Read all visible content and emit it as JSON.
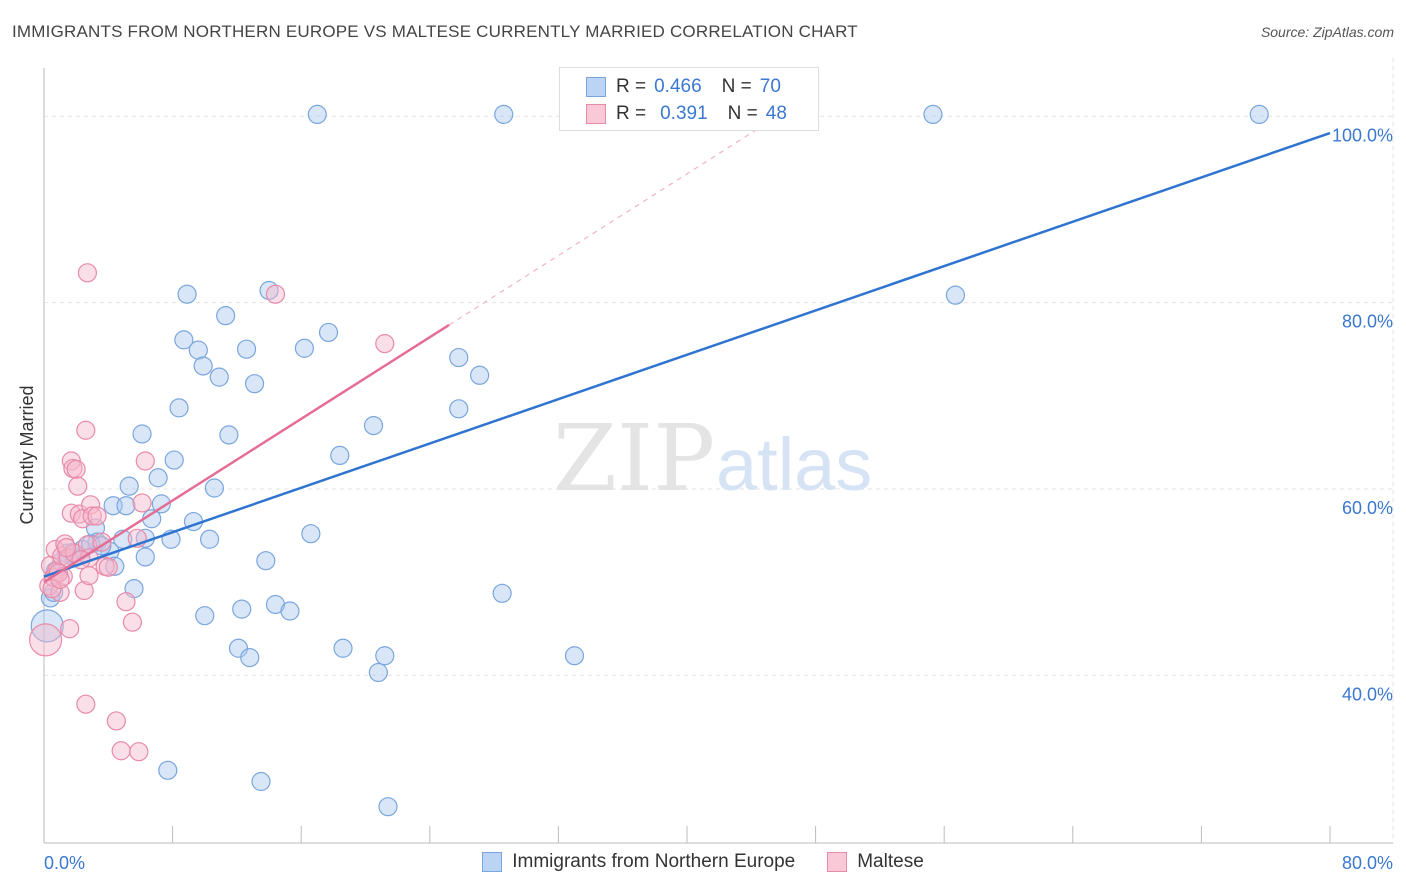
{
  "header": {
    "title": "IMMIGRANTS FROM NORTHERN EUROPE VS MALTESE CURRENTLY MARRIED CORRELATION CHART",
    "source": "Source: ZipAtlas.com"
  },
  "watermark": {
    "zip": "ZIP",
    "atlas": "atlas"
  },
  "colors": {
    "blue_fill": "#a9c8ef",
    "blue_stroke": "#7aa6de",
    "blue_line": "#2f74d0",
    "pink_fill": "#f6b7cb",
    "pink_stroke": "#e88aa8",
    "pink_line": "#e46c95",
    "tick_label": "#3b78d0"
  },
  "legend_top": [
    {
      "r_label": "R =",
      "r_value": "0.466",
      "n_label": "N =",
      "n_value": "70"
    },
    {
      "r_label": "R =",
      "r_value": "0.391",
      "n_label": "N =",
      "n_value": "48"
    }
  ],
  "chart_data": {
    "type": "scatter",
    "title": "IMMIGRANTS FROM NORTHERN EUROPE VS MALTESE CURRENTLY MARRIED CORRELATION CHART",
    "xlabel": "",
    "ylabel": "Currently Married",
    "xlim": [
      0,
      80
    ],
    "ylim": [
      22,
      104
    ],
    "x_tick_labels": [
      "0.0%",
      "80.0%"
    ],
    "y_ticks": [
      40,
      60,
      80,
      100
    ],
    "y_tick_labels": [
      "40.0%",
      "60.0%",
      "80.0%",
      "100.0%"
    ],
    "grid": true,
    "series": [
      {
        "name": "Immigrants from Northern Europe",
        "color": "#a9c8ef",
        "r": 0.466,
        "n": 70,
        "trendline": {
          "x": [
            0,
            80
          ],
          "y": [
            50.6,
            98.2
          ]
        },
        "points": [
          [
            0.2,
            45.3,
            "big"
          ],
          [
            0.4,
            48.3
          ],
          [
            0.7,
            51.2
          ],
          [
            1.4,
            53.1
          ],
          [
            1.9,
            52.6
          ],
          [
            2.4,
            53.5
          ],
          [
            3.2,
            55.8
          ],
          [
            3.3,
            54.3
          ],
          [
            4.1,
            53.3
          ],
          [
            4.4,
            51.7
          ],
          [
            4.3,
            58.2
          ],
          [
            4.9,
            54.6
          ],
          [
            5.1,
            58.2
          ],
          [
            5.3,
            60.3
          ],
          [
            5.6,
            49.3
          ],
          [
            6.1,
            65.9
          ],
          [
            6.3,
            54.7
          ],
          [
            6.3,
            52.7
          ],
          [
            6.7,
            56.8
          ],
          [
            7.1,
            61.2
          ],
          [
            7.3,
            58.4
          ],
          [
            7.9,
            54.6
          ],
          [
            8.1,
            63.1
          ],
          [
            8.4,
            68.7
          ],
          [
            8.7,
            76.0
          ],
          [
            8.9,
            80.9
          ],
          [
            9.3,
            56.5
          ],
          [
            9.6,
            74.9
          ],
          [
            9.9,
            73.2
          ],
          [
            10.0,
            46.4
          ],
          [
            10.3,
            54.6
          ],
          [
            10.6,
            60.1
          ],
          [
            10.9,
            72.0
          ],
          [
            11.3,
            78.6
          ],
          [
            11.5,
            65.8
          ],
          [
            12.1,
            42.9
          ],
          [
            12.3,
            47.1
          ],
          [
            12.6,
            75.0
          ],
          [
            12.8,
            41.9
          ],
          [
            13.1,
            71.3
          ],
          [
            13.8,
            52.3
          ],
          [
            14.0,
            81.3
          ],
          [
            14.4,
            47.6
          ],
          [
            15.3,
            46.9
          ],
          [
            16.2,
            75.1
          ],
          [
            16.6,
            55.2
          ],
          [
            17.7,
            76.8
          ],
          [
            18.4,
            63.6
          ],
          [
            18.6,
            42.9
          ],
          [
            20.5,
            66.8
          ],
          [
            20.8,
            40.3
          ],
          [
            21.2,
            42.1
          ],
          [
            17.0,
            100.2
          ],
          [
            28.6,
            100.2
          ],
          [
            25.8,
            74.1
          ],
          [
            25.8,
            68.6
          ],
          [
            27.1,
            72.2
          ],
          [
            28.5,
            48.8
          ],
          [
            33.0,
            42.1
          ],
          [
            55.3,
            100.2
          ],
          [
            56.7,
            80.8
          ],
          [
            75.6,
            100.2
          ],
          [
            7.7,
            29.8
          ],
          [
            13.5,
            28.6
          ],
          [
            21.4,
            25.9
          ],
          [
            1.8,
            53.2
          ],
          [
            2.9,
            54.1
          ],
          [
            0.6,
            48.9
          ],
          [
            1.1,
            52.2
          ],
          [
            3.6,
            53.9
          ]
        ]
      },
      {
        "name": "Maltese",
        "color": "#f6b7cb",
        "r": 0.391,
        "n": 48,
        "trendline": {
          "x": [
            0,
            25.2
          ],
          "y": [
            50.0,
            77.6
          ]
        },
        "trendline_extension": {
          "x": [
            25.2,
            45.0
          ],
          "y": [
            77.6,
            99.3
          ]
        },
        "points": [
          [
            0.1,
            43.8,
            "big"
          ],
          [
            0.3,
            49.6
          ],
          [
            0.4,
            51.8
          ],
          [
            0.6,
            50.5
          ],
          [
            0.7,
            53.5
          ],
          [
            0.8,
            51.2
          ],
          [
            1.0,
            48.9
          ],
          [
            1.1,
            52.8
          ],
          [
            1.2,
            50.6
          ],
          [
            1.3,
            54.1
          ],
          [
            1.5,
            52.6
          ],
          [
            1.6,
            45.0
          ],
          [
            1.7,
            57.4
          ],
          [
            1.7,
            63.0
          ],
          [
            1.8,
            62.2
          ],
          [
            1.9,
            53.1
          ],
          [
            2.0,
            62.1
          ],
          [
            2.1,
            60.3
          ],
          [
            2.2,
            57.3
          ],
          [
            2.4,
            56.8
          ],
          [
            2.5,
            49.1
          ],
          [
            2.6,
            36.9
          ],
          [
            2.6,
            66.3
          ],
          [
            2.7,
            54.0
          ],
          [
            2.8,
            52.6
          ],
          [
            2.8,
            50.7
          ],
          [
            2.9,
            58.3
          ],
          [
            3.0,
            57.1
          ],
          [
            2.7,
            83.2
          ],
          [
            3.3,
            57.1
          ],
          [
            3.6,
            54.3
          ],
          [
            3.8,
            51.7
          ],
          [
            4.0,
            51.6
          ],
          [
            4.5,
            35.1
          ],
          [
            4.8,
            31.9
          ],
          [
            5.1,
            47.9
          ],
          [
            5.5,
            45.7
          ],
          [
            5.8,
            54.7
          ],
          [
            5.9,
            31.8
          ],
          [
            6.1,
            58.5
          ],
          [
            6.3,
            63.0
          ],
          [
            14.4,
            80.9
          ],
          [
            21.2,
            75.6
          ],
          [
            0.9,
            51.0
          ],
          [
            1.4,
            53.7
          ],
          [
            2.3,
            52.4
          ],
          [
            0.5,
            49.3
          ],
          [
            1.0,
            50.3
          ]
        ]
      }
    ]
  },
  "axes": {
    "y_label": "Currently Married",
    "x_tick_left": "0.0%",
    "x_tick_right": "80.0%"
  },
  "bottom_legend": [
    {
      "label": "Immigrants from Northern Europe"
    },
    {
      "label": "Maltese"
    }
  ]
}
